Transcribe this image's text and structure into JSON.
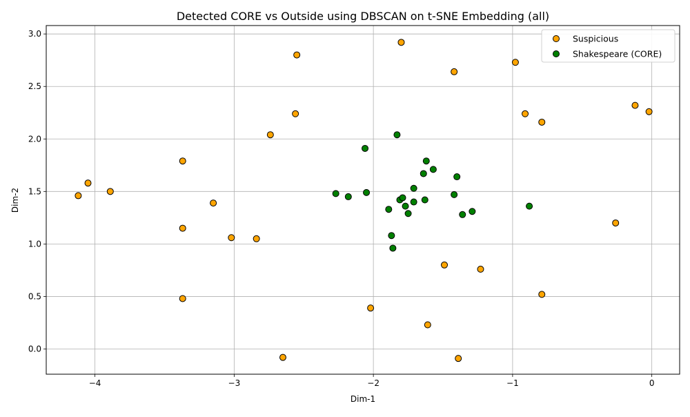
{
  "chart_data": {
    "type": "scatter",
    "title": "Detected CORE vs Outside using DBSCAN on t-SNE Embedding (all)",
    "xlabel": "Dim-1",
    "ylabel": "Dim-2",
    "xlim": [
      -4.35,
      0.2
    ],
    "ylim": [
      -0.24,
      3.08
    ],
    "xticks": [
      -4,
      -3,
      -2,
      -1,
      0
    ],
    "xtick_labels": [
      "−4",
      "−3",
      "−2",
      "−1",
      "0"
    ],
    "yticks": [
      0.0,
      0.5,
      1.0,
      1.5,
      2.0,
      2.5,
      3.0
    ],
    "ytick_labels": [
      "0.0",
      "0.5",
      "1.0",
      "1.5",
      "2.0",
      "2.5",
      "3.0"
    ],
    "grid": true,
    "legend_position": "top-right",
    "series": [
      {
        "name": "Suspicious",
        "color": "#ffa500",
        "points": [
          [
            -4.12,
            1.46
          ],
          [
            -4.05,
            1.58
          ],
          [
            -3.89,
            1.5
          ],
          [
            -3.37,
            1.79
          ],
          [
            -3.37,
            1.15
          ],
          [
            -3.37,
            0.48
          ],
          [
            -3.15,
            1.39
          ],
          [
            -3.02,
            1.06
          ],
          [
            -2.84,
            1.05
          ],
          [
            -2.74,
            2.04
          ],
          [
            -2.65,
            -0.08
          ],
          [
            -2.55,
            2.8
          ],
          [
            -2.56,
            2.24
          ],
          [
            -2.02,
            0.39
          ],
          [
            -1.8,
            2.92
          ],
          [
            -1.61,
            0.23
          ],
          [
            -1.49,
            0.8
          ],
          [
            -1.42,
            2.64
          ],
          [
            -1.39,
            -0.09
          ],
          [
            -1.23,
            0.76
          ],
          [
            -0.98,
            2.73
          ],
          [
            -0.91,
            2.24
          ],
          [
            -0.79,
            2.16
          ],
          [
            -0.79,
            0.52
          ],
          [
            -0.26,
            1.2
          ],
          [
            -0.12,
            2.32
          ],
          [
            -0.02,
            2.26
          ]
        ]
      },
      {
        "name": "Shakespeare (CORE)",
        "color": "#008000",
        "points": [
          [
            -2.27,
            1.48
          ],
          [
            -2.18,
            1.45
          ],
          [
            -2.06,
            1.91
          ],
          [
            -2.05,
            1.49
          ],
          [
            -1.89,
            1.33
          ],
          [
            -1.87,
            1.08
          ],
          [
            -1.86,
            0.96
          ],
          [
            -1.83,
            2.04
          ],
          [
            -1.81,
            1.42
          ],
          [
            -1.79,
            1.44
          ],
          [
            -1.77,
            1.36
          ],
          [
            -1.75,
            1.29
          ],
          [
            -1.71,
            1.53
          ],
          [
            -1.71,
            1.4
          ],
          [
            -1.64,
            1.67
          ],
          [
            -1.63,
            1.42
          ],
          [
            -1.62,
            1.79
          ],
          [
            -1.57,
            1.71
          ],
          [
            -1.42,
            1.47
          ],
          [
            -1.4,
            1.64
          ],
          [
            -1.36,
            1.28
          ],
          [
            -1.29,
            1.31
          ],
          [
            -0.88,
            1.36
          ]
        ]
      }
    ]
  }
}
